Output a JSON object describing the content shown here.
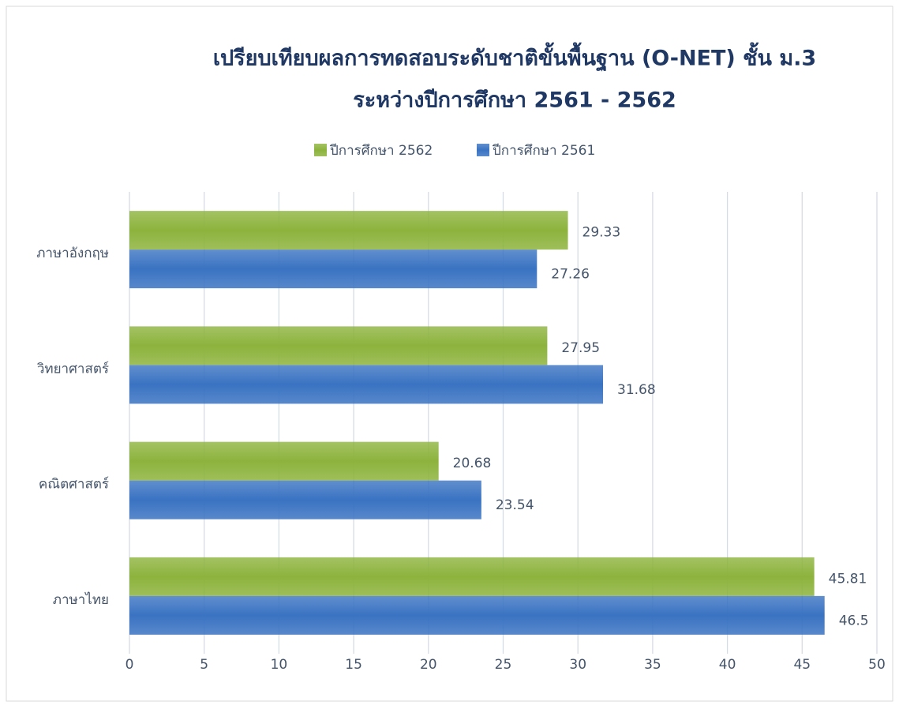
{
  "chart_data": {
    "type": "barh",
    "title": [
      "เปรียบเทียบผลการทดสอบระดับชาติขั้นพื้นฐาน (O-NET) ชั้น ม.3",
      "ระหว่างปีการศึกษา 2561 - 2562"
    ],
    "categories": [
      "ภาษาอังกฤษ",
      "วิทยาศาสตร์",
      "คณิตศาสตร์",
      "ภาษาไทย"
    ],
    "series": [
      {
        "name": "ปีการศึกษา 2562",
        "color": "#8db33d",
        "values": [
          29.33,
          27.95,
          20.68,
          45.81
        ]
      },
      {
        "name": "ปีการศึกษา 2561",
        "color": "#3a73c2",
        "values": [
          27.26,
          31.68,
          23.54,
          46.5
        ]
      }
    ],
    "xlim": [
      0,
      50
    ],
    "xticks": [
      0,
      5,
      10,
      15,
      20,
      25,
      30,
      35,
      40,
      45,
      50
    ],
    "grid": true
  }
}
